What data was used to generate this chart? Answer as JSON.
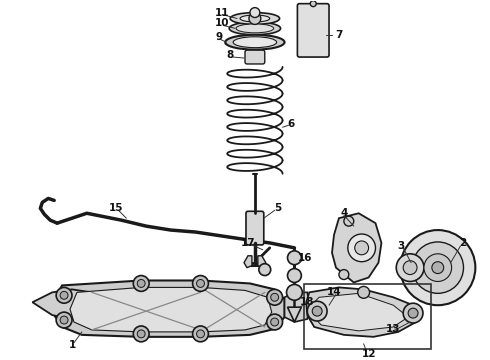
{
  "bg_color": "#ffffff",
  "line_color": "#1a1a1a",
  "label_color": "#111111",
  "fig_width": 4.9,
  "fig_height": 3.6,
  "dpi": 100
}
